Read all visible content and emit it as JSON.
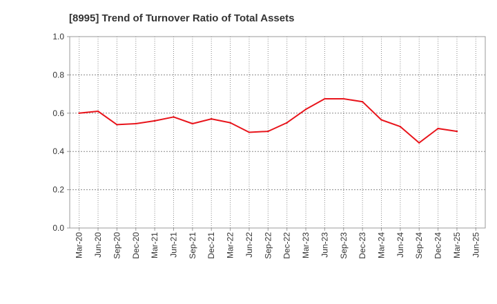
{
  "chart_data": {
    "type": "line",
    "title": "[8995]  Trend of Turnover Ratio of Total Assets",
    "xlabel": "",
    "ylabel": "",
    "ylim": [
      0.0,
      1.0
    ],
    "yticks": [
      "0.0",
      "0.2",
      "0.4",
      "0.6",
      "0.8",
      "1.0"
    ],
    "x_tick_labels": [
      "Mar-20",
      "Jun-20",
      "Sep-20",
      "Dec-20",
      "Mar-21",
      "Jun-21",
      "Sep-21",
      "Dec-21",
      "Mar-22",
      "Jun-22",
      "Sep-22",
      "Dec-22",
      "Mar-23",
      "Jun-23",
      "Sep-23",
      "Dec-23",
      "Mar-24",
      "Jun-24",
      "Sep-24",
      "Dec-24",
      "Mar-25",
      "Jun-25"
    ],
    "grid": true,
    "legend": "none",
    "series": [
      {
        "color": "#e8141b",
        "x": [
          "Mar-20",
          "Jun-20",
          "Sep-20",
          "Dec-20",
          "Mar-21",
          "Jun-21",
          "Sep-21",
          "Dec-21",
          "Mar-22",
          "Jun-22",
          "Sep-22",
          "Dec-22",
          "Mar-23",
          "Jun-23",
          "Sep-23",
          "Dec-23",
          "Mar-24",
          "Jun-24",
          "Sep-24",
          "Dec-24",
          "Mar-25"
        ],
        "values": [
          0.6,
          0.61,
          0.54,
          0.545,
          0.56,
          0.58,
          0.545,
          0.57,
          0.55,
          0.5,
          0.505,
          0.55,
          0.62,
          0.675,
          0.675,
          0.66,
          0.565,
          0.53,
          0.445,
          0.52,
          0.505
        ]
      }
    ]
  }
}
